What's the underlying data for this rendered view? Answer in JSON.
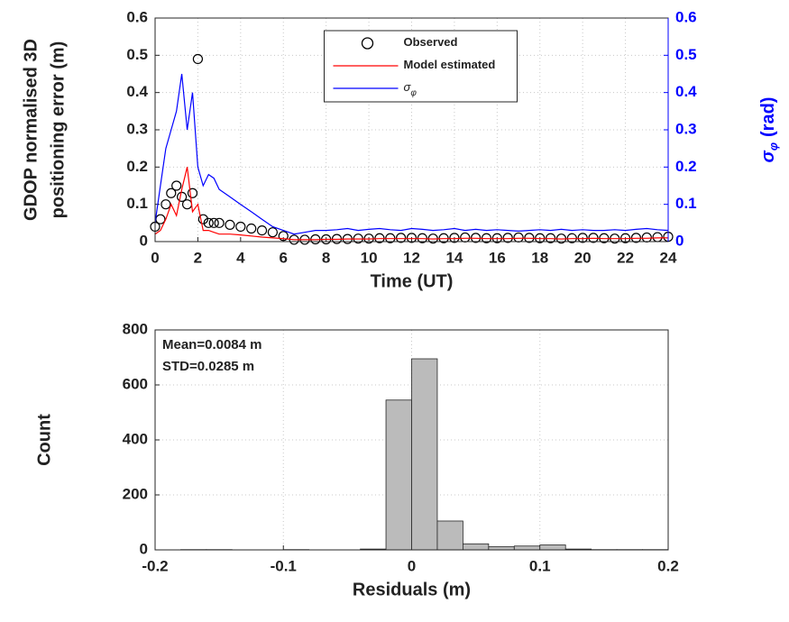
{
  "chart_data": [
    {
      "type": "line",
      "x_label": "Time (UT)",
      "y_label": [
        "GDOP normalised 3D",
        "positioning error (m)"
      ],
      "y2_label": {
        "text": "σ",
        "subscript": "φ",
        "unit": "(rad)"
      },
      "x": [
        0,
        0.25,
        0.5,
        0.75,
        1,
        1.25,
        1.5,
        1.75,
        2,
        2.25,
        2.5,
        2.75,
        3,
        3.5,
        4,
        4.5,
        5,
        5.5,
        6,
        6.5,
        7,
        7.5,
        8,
        8.5,
        9,
        9.5,
        10,
        10.5,
        11,
        11.5,
        12,
        12.5,
        13,
        13.5,
        14,
        14.5,
        15,
        15.5,
        16,
        16.5,
        17,
        17.5,
        18,
        18.5,
        19,
        19.5,
        20,
        20.5,
        21,
        21.5,
        22,
        22.5,
        23,
        23.5,
        24
      ],
      "series": [
        {
          "name": "Observed",
          "color": "#000000",
          "marker": "circle",
          "values": [
            0.04,
            0.06,
            0.1,
            0.13,
            0.15,
            0.12,
            0.1,
            0.13,
            0.49,
            0.06,
            0.05,
            0.05,
            0.05,
            0.045,
            0.04,
            0.035,
            0.03,
            0.025,
            0.015,
            0.005,
            0.005,
            0.006,
            0.006,
            0.007,
            0.007,
            0.008,
            0.008,
            0.009,
            0.009,
            0.01,
            0.01,
            0.009,
            0.008,
            0.009,
            0.01,
            0.011,
            0.01,
            0.009,
            0.009,
            0.01,
            0.011,
            0.01,
            0.009,
            0.009,
            0.008,
            0.009,
            0.01,
            0.01,
            0.009,
            0.008,
            0.009,
            0.01,
            0.011,
            0.012,
            0.013
          ]
        },
        {
          "name": "Model estimated",
          "color": "#ff0000",
          "values": [
            0.02,
            0.03,
            0.06,
            0.1,
            0.07,
            0.14,
            0.2,
            0.08,
            0.1,
            0.03,
            0.03,
            0.025,
            0.02,
            0.02,
            0.018,
            0.015,
            0.012,
            0.01,
            0.008,
            0.005,
            0.005,
            0.005,
            0.006,
            0.006,
            0.007,
            0.007,
            0.007,
            0.008,
            0.008,
            0.008,
            0.008,
            0.008,
            0.007,
            0.008,
            0.008,
            0.009,
            0.009,
            0.008,
            0.008,
            0.008,
            0.009,
            0.009,
            0.008,
            0.008,
            0.007,
            0.008,
            0.008,
            0.009,
            0.008,
            0.008,
            0.008,
            0.009,
            0.009,
            0.01,
            0.01
          ]
        },
        {
          "name": "σ",
          "name_subscript": "φ",
          "color": "#0000ff",
          "axis": "y2",
          "values": [
            0.05,
            0.15,
            0.25,
            0.3,
            0.35,
            0.45,
            0.3,
            0.4,
            0.2,
            0.15,
            0.18,
            0.17,
            0.14,
            0.12,
            0.1,
            0.08,
            0.06,
            0.04,
            0.03,
            0.02,
            0.025,
            0.03,
            0.03,
            0.032,
            0.035,
            0.03,
            0.033,
            0.035,
            0.032,
            0.03,
            0.035,
            0.033,
            0.03,
            0.032,
            0.035,
            0.03,
            0.033,
            0.03,
            0.032,
            0.03,
            0.028,
            0.03,
            0.032,
            0.03,
            0.033,
            0.03,
            0.032,
            0.03,
            0.03,
            0.032,
            0.03,
            0.033,
            0.035,
            0.032,
            0.03
          ]
        }
      ],
      "xlim": [
        0,
        24
      ],
      "xticks": [
        0,
        2,
        4,
        6,
        8,
        10,
        12,
        14,
        16,
        18,
        20,
        22,
        24
      ],
      "ylim": [
        0,
        0.6
      ],
      "yticks": [
        0,
        0.1,
        0.2,
        0.3,
        0.4,
        0.5,
        0.6
      ],
      "y2lim": [
        0,
        0.6
      ],
      "y2ticks": [
        0,
        0.1,
        0.2,
        0.3,
        0.4,
        0.5,
        0.6
      ],
      "y2_color": "#0000ff",
      "grid": true,
      "legend": "upper center"
    },
    {
      "type": "histogram",
      "x_label": "Residuals (m)",
      "y_label": "Count",
      "annotations": [
        "Mean=0.0084 m",
        "STD=0.0285 m"
      ],
      "bins": [
        -0.2,
        -0.18,
        -0.16,
        -0.14,
        -0.12,
        -0.1,
        -0.08,
        -0.06,
        -0.04,
        -0.02,
        0,
        0.02,
        0.04,
        0.06,
        0.08,
        0.1,
        0.12,
        0.14,
        0.16,
        0.18,
        0.2
      ],
      "values": [
        0,
        1,
        1,
        0,
        0,
        1,
        0,
        0,
        3,
        545,
        695,
        105,
        22,
        12,
        14,
        18,
        3,
        1,
        1,
        1
      ],
      "color": "#bbbbbb",
      "xlim": [
        -0.2,
        0.2
      ],
      "xticks": [
        -0.2,
        -0.1,
        0,
        0.1,
        0.2
      ],
      "ylim": [
        0,
        800
      ],
      "yticks": [
        0,
        200,
        400,
        600,
        800
      ],
      "grid": true
    }
  ]
}
